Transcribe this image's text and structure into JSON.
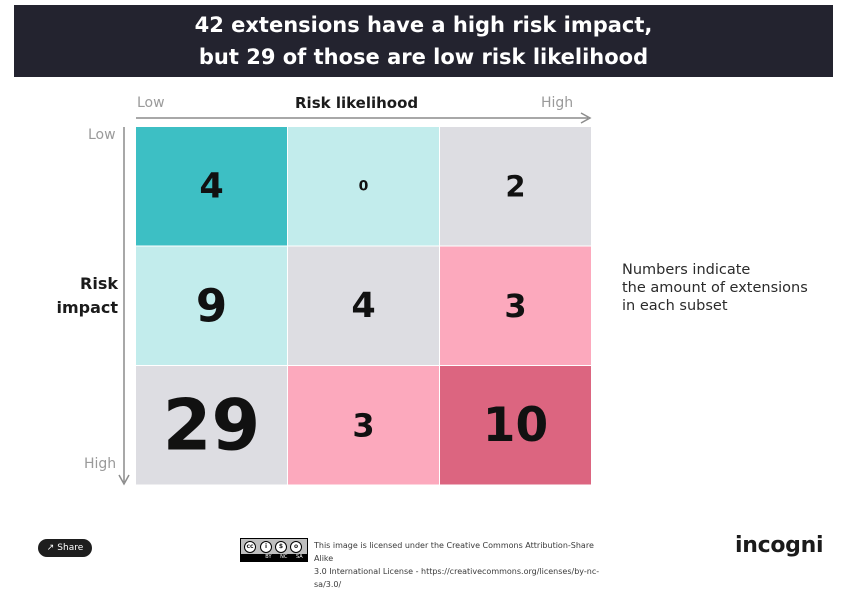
{
  "header": {
    "line1": "42 extensions have a high risk impact,",
    "line2": "but 29 of those are low risk likelihood"
  },
  "chart_data": {
    "type": "heatmap",
    "xlabel": "Risk likelihood",
    "ylabel_line1": "Risk",
    "ylabel_line2": "impact",
    "x_low": "Low",
    "x_high": "High",
    "y_low": "Low",
    "y_high": "High",
    "rows": [
      {
        "values": [
          4,
          0,
          2
        ],
        "colors": [
          "#3dbfc4",
          "#c2ecec",
          "#dddde2"
        ]
      },
      {
        "values": [
          9,
          4,
          3
        ],
        "colors": [
          "#c2ecec",
          "#dddde2",
          "#fca9bd"
        ]
      },
      {
        "values": [
          29,
          3,
          10
        ],
        "colors": [
          "#dddde2",
          "#fca9bd",
          "#dc6580"
        ]
      }
    ]
  },
  "note": {
    "line1": "Numbers indicate",
    "line2": "the amount of extensions",
    "line3": "in each subset"
  },
  "footer": {
    "share_label": "Share",
    "share_icon": "share-icon",
    "cc_letters": [
      "cc",
      "i",
      "$",
      "o"
    ],
    "cc_strip": [
      "BY",
      "NC",
      "SA"
    ],
    "license_line1": "This image is licensed under the Creative Commons Attribution-Share Alike",
    "license_line2": "3.0 International License - https://creativecommons.org/licenses/by-nc-sa/3.0/",
    "logo": "incogni"
  }
}
